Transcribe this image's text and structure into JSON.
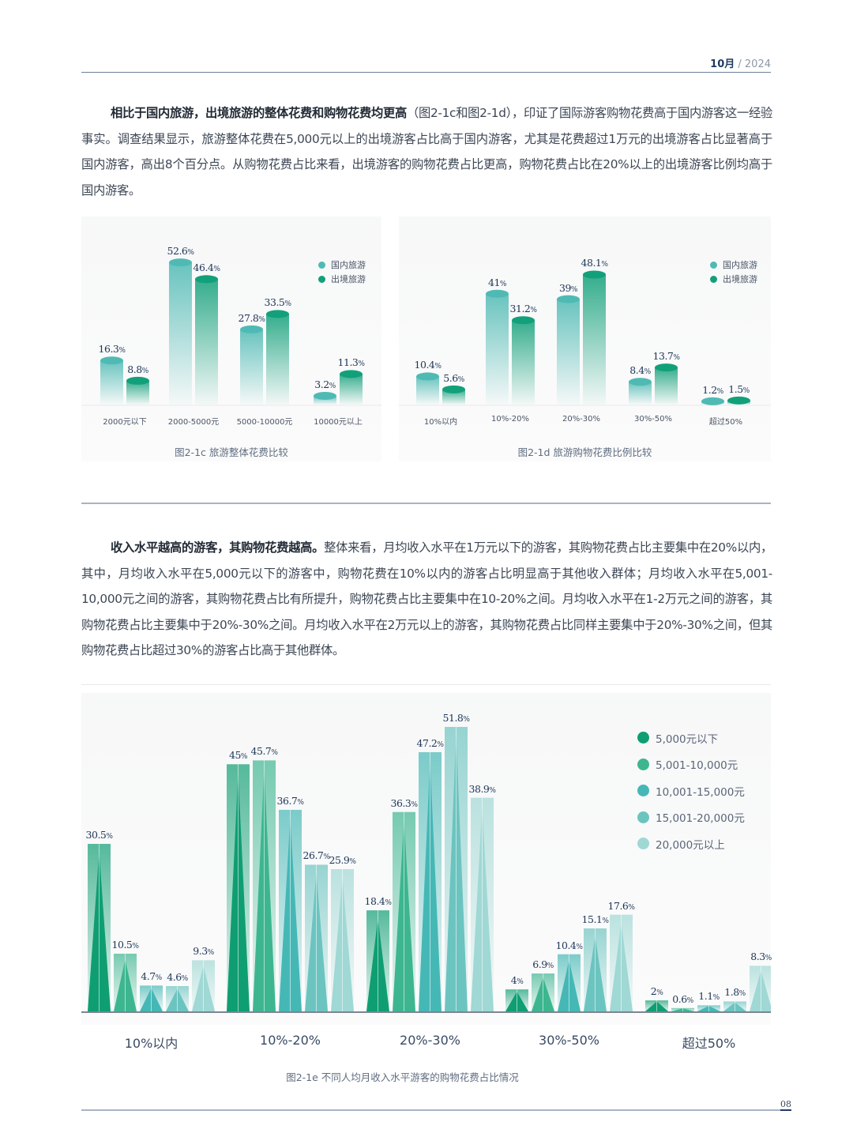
{
  "header": {
    "month": "10月",
    "sep": " / ",
    "year": "2024",
    "page": "08"
  },
  "para1": {
    "lead": "相比于国内旅游，出境旅游的整体花费和购物花费均更高",
    "body": "（图2-1c和图2-1d），印证了国际游客购物花费高于国内游客这一经验事实。调查结果显示，旅游整体花费在5,000元以上的出境游客占比高于国内游客，尤其是花费超过1万元的出境游客占比显著高于国内游客，高出8个百分点。从购物花费占比来看，出境游客的购物花费占比更高，购物花费占比在20%以上的出境游客比例均高于国内游客。"
  },
  "para2": {
    "lead": "收入水平越高的游客，其购物花费越高。",
    "body": "整体来看，月均收入水平在1万元以下的游客，其购物花费占比主要集中在20%以内，其中，月均收入水平在5,000元以下的游客中，购物花费在10%以内的游客占比明显高于其他收入群体；月均收入水平在5,001-10,000元之间的游客，其购物花费占比有所提升，购物花费占比主要集中在10-20%之间。月均收入水平在1-2万元之间的游客，其购物花费占比主要集中于20%-30%之间。月均收入水平在2万元以上的游客，其购物花费占比同样主要集中于20%-30%之间，但其购物花费占比超过30%的游客占比高于其他群体。"
  },
  "colors": {
    "domestic": "#4fbab4",
    "outbound": "#12a07a",
    "income": [
      "#0f9e72",
      "#3db690",
      "#45b8b6",
      "#6cc4c0",
      "#9fd8d4"
    ],
    "text_navy": "#1d3557"
  },
  "chart_data": [
    {
      "type": "bar",
      "title": "图2-1c 旅游整体花费比较",
      "categories": [
        "2000元以下",
        "2000-5000元",
        "5000-10000元",
        "10000元以上"
      ],
      "series": [
        {
          "name": "国内旅游",
          "values": [
            16.3,
            52.6,
            27.8,
            3.2
          ]
        },
        {
          "name": "出境旅游",
          "values": [
            8.8,
            46.4,
            33.5,
            11.3
          ]
        }
      ],
      "unit": "%",
      "legend_position": "top-right",
      "grid": false
    },
    {
      "type": "bar",
      "title": "图2-1d 旅游购物花费比例比较",
      "categories": [
        "10%以内",
        "10%-20%",
        "20%-30%",
        "30%-50%",
        "超过50%"
      ],
      "series": [
        {
          "name": "国内旅游",
          "values": [
            10.4,
            41,
            39,
            8.4,
            1.2
          ]
        },
        {
          "name": "出境旅游",
          "values": [
            5.6,
            31.2,
            48.1,
            13.7,
            1.5
          ]
        }
      ],
      "unit": "%",
      "legend_position": "top-right",
      "grid": false
    },
    {
      "type": "bar",
      "title": "图2-1e 不同人均月收入水平游客的购物花费占比情况",
      "categories": [
        "10%以内",
        "10%-20%",
        "20%-30%",
        "30%-50%",
        "超过50%"
      ],
      "series": [
        {
          "name": "5,000元以下",
          "values": [
            30.5,
            45,
            18.4,
            4,
            2
          ]
        },
        {
          "name": "5,001-10,000元",
          "values": [
            10.5,
            45.7,
            36.3,
            6.9,
            0.6
          ]
        },
        {
          "name": "10,001-15,000元",
          "values": [
            4.7,
            36.7,
            47.2,
            10.4,
            1.1
          ]
        },
        {
          "name": "15,001-20,000元",
          "values": [
            4.6,
            26.7,
            51.8,
            15.1,
            1.8
          ]
        },
        {
          "name": "20,000元以上",
          "values": [
            9.3,
            25.9,
            38.9,
            17.6,
            8.3
          ]
        }
      ],
      "unit": "%",
      "legend_position": "top-right",
      "grid": false
    }
  ]
}
